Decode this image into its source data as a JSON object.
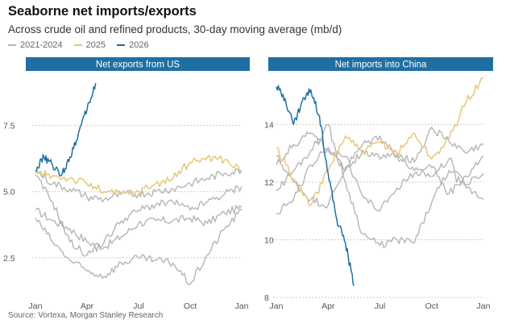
{
  "header": {
    "title": "Seaborne net imports/exports",
    "subtitle": "Across crude oil and refined products, 30-day moving average (mb/d)"
  },
  "legend": [
    {
      "label": "2021-2024",
      "color": "#b5b5b5"
    },
    {
      "label": "2025",
      "color": "#e8c77a"
    },
    {
      "label": "2026",
      "color": "#1f6fa3"
    }
  ],
  "source": "Source: Vortexa, Morgan Stanley Research",
  "colors": {
    "banner": "#1f6fa3",
    "grid": "#cccccc"
  },
  "chart_data": [
    {
      "type": "line",
      "title": "Net exports from US",
      "x_ticks": [
        "Jan",
        "Apr",
        "Jul",
        "Oct",
        "Jan"
      ],
      "x_range": [
        "Jan",
        "Jan (next year)"
      ],
      "y_ticks": [
        "2.5",
        "5.0",
        "7.5"
      ],
      "ylim": [
        1.0,
        9.5
      ],
      "grid": "horizontal dotted",
      "series": [
        {
          "name": "2021-2024",
          "color": "#b5b5b5",
          "x_months": [
            0,
            1,
            2,
            3,
            4,
            5,
            6,
            7,
            8,
            9,
            10,
            11,
            12
          ],
          "values": [
            4.3,
            3.9,
            3.6,
            3.1,
            2.9,
            3.3,
            3.8,
            3.9,
            3.9,
            4.0,
            3.8,
            4.2,
            4.4
          ]
        },
        {
          "name": "2021-2024",
          "color": "#b5b5b5",
          "x_months": [
            0,
            1,
            2,
            3,
            4,
            5,
            6,
            7,
            8,
            9,
            10,
            11,
            12
          ],
          "values": [
            4.0,
            3.1,
            2.4,
            2.0,
            1.8,
            2.3,
            2.5,
            2.4,
            2.3,
            1.5,
            2.6,
            3.6,
            4.3
          ]
        },
        {
          "name": "2021-2024",
          "color": "#b5b5b5",
          "x_months": [
            0,
            1,
            2,
            3,
            4,
            5,
            6,
            7,
            8,
            9,
            10,
            11,
            12
          ],
          "values": [
            5.6,
            4.6,
            3.1,
            2.6,
            3.1,
            3.9,
            4.3,
            4.5,
            4.6,
            4.3,
            4.6,
            4.9,
            5.2
          ]
        },
        {
          "name": "2021-2024",
          "color": "#b5b5b5",
          "x_months": [
            0,
            1,
            2,
            3,
            4,
            5,
            6,
            7,
            8,
            9,
            10,
            11,
            12
          ],
          "values": [
            5.8,
            5.3,
            5.1,
            4.8,
            4.7,
            4.9,
            4.9,
            5.0,
            5.1,
            5.3,
            5.5,
            5.7,
            5.8
          ]
        },
        {
          "name": "2025",
          "color": "#e8c77a",
          "x_months": [
            0,
            1,
            2,
            3,
            4,
            5,
            6,
            7,
            8,
            9,
            10,
            11,
            12
          ],
          "values": [
            5.7,
            5.6,
            5.5,
            5.3,
            5.0,
            4.9,
            5.0,
            5.3,
            5.5,
            6.1,
            6.3,
            6.2,
            5.8
          ]
        },
        {
          "name": "2026",
          "color": "#1f6fa3",
          "x_months": [
            0,
            0.5,
            1,
            1.5,
            2,
            2.5,
            3,
            3.5
          ],
          "values": [
            5.8,
            6.3,
            6.0,
            5.6,
            6.3,
            7.2,
            8.1,
            9.1
          ]
        }
      ]
    },
    {
      "type": "line",
      "title": "Net imports into China",
      "x_ticks": [
        "Jan",
        "Apr",
        "Jul",
        "Oct",
        "Jan"
      ],
      "x_range": [
        "Jan",
        "Jan (next year)"
      ],
      "y_ticks": [
        "8",
        "10",
        "12",
        "14"
      ],
      "ylim": [
        8,
        15.8
      ],
      "grid": "horizontal dotted",
      "series": [
        {
          "name": "2021-2024",
          "color": "#b5b5b5",
          "x_months": [
            0,
            1,
            2,
            3,
            4,
            5,
            6,
            7,
            8,
            9,
            10,
            11,
            12
          ],
          "values": [
            12.9,
            12.0,
            11.4,
            11.2,
            12.5,
            13.3,
            13.6,
            12.9,
            12.4,
            12.2,
            12.8,
            11.9,
            12.3
          ]
        },
        {
          "name": "2021-2024",
          "color": "#b5b5b5",
          "x_months": [
            0,
            1,
            2,
            3,
            4,
            5,
            6,
            7,
            8,
            9,
            10,
            11,
            12
          ],
          "values": [
            11.7,
            12.4,
            13.1,
            14.0,
            12.0,
            10.2,
            9.8,
            10.0,
            9.9,
            11.3,
            12.4,
            11.8,
            11.4
          ]
        },
        {
          "name": "2021-2024",
          "color": "#b5b5b5",
          "x_months": [
            0,
            1,
            2,
            3,
            4,
            5,
            6,
            7,
            8,
            9,
            10,
            11,
            12
          ],
          "values": [
            12.6,
            13.3,
            13.7,
            13.1,
            12.9,
            11.5,
            11.0,
            11.8,
            12.3,
            12.5,
            11.6,
            12.2,
            12.9
          ]
        },
        {
          "name": "2021-2024",
          "color": "#b5b5b5",
          "x_months": [
            0,
            1,
            2,
            3,
            4,
            5,
            6,
            7,
            8,
            9,
            10,
            11,
            12
          ],
          "values": [
            10.9,
            11.4,
            12.6,
            13.2,
            12.4,
            13.1,
            12.8,
            13.0,
            12.7,
            13.9,
            13.4,
            13.0,
            13.3
          ]
        },
        {
          "name": "2025",
          "color": "#e8c77a",
          "x_months": [
            0,
            1,
            2,
            3,
            4,
            5,
            6,
            7,
            8,
            9,
            10,
            11,
            12
          ],
          "values": [
            13.2,
            12.1,
            11.2,
            12.4,
            13.6,
            13.0,
            13.4,
            13.0,
            13.7,
            12.8,
            13.5,
            14.8,
            15.6
          ]
        },
        {
          "name": "2026",
          "color": "#1f6fa3",
          "x_months": [
            0,
            0.5,
            1,
            1.5,
            2,
            2.5,
            3,
            3.5,
            4,
            4.5
          ],
          "values": [
            15.3,
            14.9,
            14.0,
            14.8,
            15.2,
            14.3,
            12.3,
            10.7,
            9.9,
            8.4
          ]
        }
      ]
    }
  ]
}
